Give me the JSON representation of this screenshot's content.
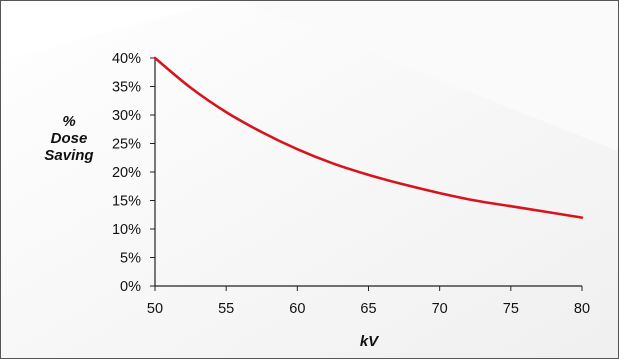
{
  "chart_data": {
    "type": "line",
    "title": "",
    "xlabel": "kV",
    "ylabel": [
      "%",
      "Dose",
      "Saving"
    ],
    "xlim": [
      50,
      80
    ],
    "ylim": [
      0,
      40
    ],
    "x_ticks": [
      "50",
      "55",
      "60",
      "65",
      "70",
      "75",
      "80"
    ],
    "y_ticks": [
      "0%",
      "5%",
      "10%",
      "15%",
      "20%",
      "25%",
      "30%",
      "35%",
      "40%"
    ],
    "grid": false,
    "legend": "none",
    "series": [
      {
        "color": "#d7141d",
        "x": [
          50,
          52.5,
          55,
          57.5,
          60,
          62.5,
          65,
          67.5,
          70,
          72.5,
          75,
          77.5,
          80
        ],
        "y": [
          40,
          34.8,
          30.5,
          27.0,
          24.0,
          21.5,
          19.5,
          17.8,
          16.3,
          15.0,
          14.0,
          13.0,
          12.0
        ]
      }
    ]
  }
}
